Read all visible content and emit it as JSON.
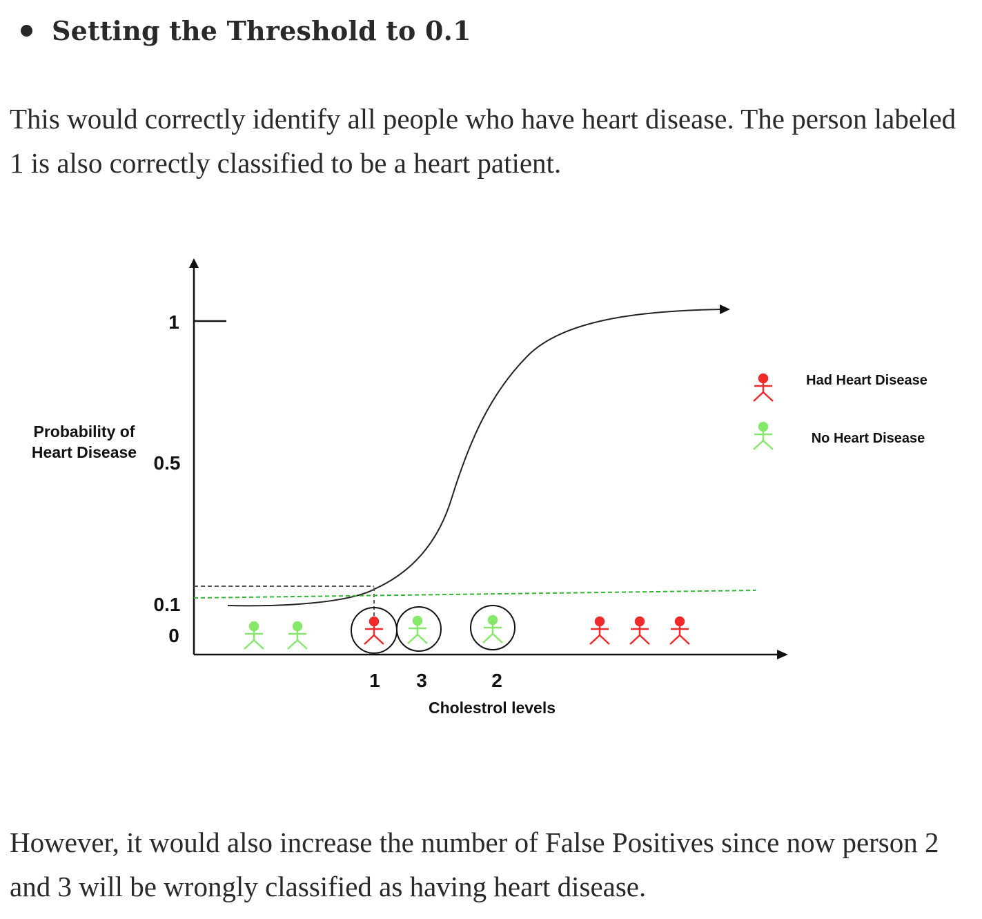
{
  "heading": "Setting the Threshold to 0.1",
  "paragraph_1": "This would correctly identify all people who have heart disease. The person labeled 1 is also correctly classified to be a heart patient.",
  "paragraph_2": "However, it would also increase the number of False Positives since now person 2 and 3 will be wrongly classified as having heart disease.",
  "figure": {
    "y_label_line1": "Probability of",
    "y_label_line2": "Heart Disease",
    "x_label": "Cholestrol levels",
    "y_ticks": [
      "1",
      "0.5",
      "0.1",
      "0"
    ],
    "point_labels": [
      "1",
      "3",
      "2"
    ],
    "legend": [
      {
        "label": "Had Heart Disease",
        "color": "#ee2a2a"
      },
      {
        "label": "No Heart Disease",
        "color": "#86e86a"
      }
    ],
    "threshold_color": "#2fb52f",
    "curve_color": "#222222"
  }
}
